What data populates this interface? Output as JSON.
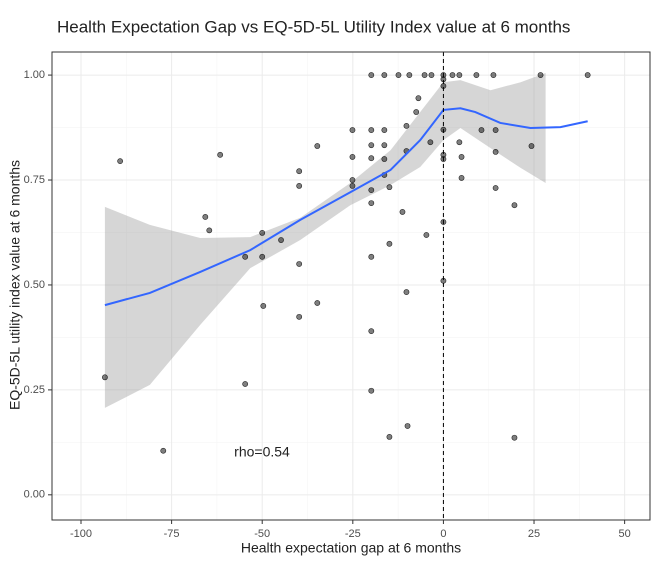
{
  "chart_data": {
    "type": "scatter",
    "title": "Health Expectation Gap vs EQ-5D-5L Utility Index value at 6 months",
    "x_label": "Health expectation gap at 6 months",
    "y_label": "EQ-5D-5L utility index value at 6 months",
    "annotation": "rho=0.54",
    "xlim": [
      -108,
      57
    ],
    "ylim": [
      -0.06,
      1.055
    ],
    "xticks": [
      -100,
      -75,
      -50,
      -25,
      0,
      25,
      50
    ],
    "yticks": [
      {
        "value": 0,
        "label": "0.00"
      },
      {
        "value": 0.25,
        "label": "0.25"
      },
      {
        "value": 0.5,
        "label": "0.50"
      },
      {
        "value": 0.75,
        "label": "0.75"
      },
      {
        "value": 1,
        "label": "1.00"
      }
    ],
    "grid": true,
    "vline": 0,
    "point_color": "#000000",
    "line_color": "#3366ff",
    "ribbon_color": "#999999",
    "points": {
      "x": [
        -93.4,
        -89.2,
        -77.3,
        -65.7,
        -64.6,
        -61.6,
        -54.7,
        -54.7,
        -50,
        -50,
        -49.7,
        -44.8,
        -39.8,
        -39.8,
        -39.8,
        -39.8,
        -34.8,
        -34.8,
        -25.1,
        -25.1,
        -25.1,
        -25.1,
        -19.9,
        -19.9,
        -19.9,
        -19.9,
        -19.9,
        -19.9,
        -19.9,
        -19.9,
        -19.9,
        -16.3,
        -16.3,
        -16.3,
        -16.3,
        -16.3,
        -14.9,
        -14.9,
        -14.9,
        -12.4,
        -11.3,
        -10.2,
        -10.2,
        -10.2,
        -9.9,
        -9.4,
        -7.5,
        -6.9,
        -5.2,
        -4.7,
        -3.6,
        -3.3,
        0,
        0,
        0,
        0,
        0,
        0,
        0,
        0,
        2.5,
        4.4,
        4.4,
        5,
        5,
        9.1,
        10.5,
        13.8,
        14.4,
        14.4,
        14.4,
        19.6,
        19.6,
        24.3,
        26.8,
        39.8
      ],
      "y": [
        0.28,
        0.795,
        0.105,
        0.662,
        0.63,
        0.81,
        0.567,
        0.264,
        0.624,
        0.567,
        0.45,
        0.607,
        0.771,
        0.736,
        0.55,
        0.424,
        0.457,
        0.831,
        0.869,
        0.805,
        0.75,
        0.736,
        1.0,
        0.869,
        0.833,
        0.802,
        0.726,
        0.695,
        0.567,
        0.39,
        0.248,
        1.0,
        0.869,
        0.833,
        0.8,
        0.762,
        0.733,
        0.598,
        0.138,
        1.0,
        0.674,
        0.879,
        0.819,
        0.483,
        0.164,
        1.0,
        0.912,
        0.945,
        1.0,
        0.619,
        0.84,
        1.0,
        1.0,
        0.99,
        0.974,
        0.87,
        0.81,
        0.8,
        0.65,
        0.51,
        1.0,
        1.0,
        0.84,
        0.805,
        0.755,
        1.0,
        0.869,
        1.0,
        0.869,
        0.731,
        0.817,
        0.69,
        0.136,
        0.831,
        1.0,
        1.0
      ]
    },
    "smooth": {
      "x": [
        -93.4,
        -81,
        -67.1,
        -53.3,
        -39.5,
        -25.7,
        -14.6,
        -6.4,
        0,
        4.7,
        8.8,
        15.7,
        24,
        32.3,
        39.8
      ],
      "y": [
        0.452,
        0.481,
        0.531,
        0.583,
        0.655,
        0.721,
        0.774,
        0.845,
        0.917,
        0.921,
        0.912,
        0.886,
        0.874,
        0.876,
        0.89
      ]
    },
    "ribbon": {
      "x": [
        -93.4,
        -81,
        -67.1,
        -53.3,
        -39.5,
        -25.7,
        -14.6,
        -6.4,
        0,
        4.7,
        13,
        21.3,
        28.2
      ],
      "upper": [
        0.686,
        0.643,
        0.612,
        0.614,
        0.66,
        0.743,
        0.821,
        0.912,
        0.983,
        0.988,
        0.964,
        0.983,
        1.005
      ],
      "lower": [
        0.207,
        0.262,
        0.405,
        0.54,
        0.607,
        0.69,
        0.738,
        0.781,
        0.845,
        0.874,
        0.826,
        0.779,
        0.743
      ]
    }
  }
}
